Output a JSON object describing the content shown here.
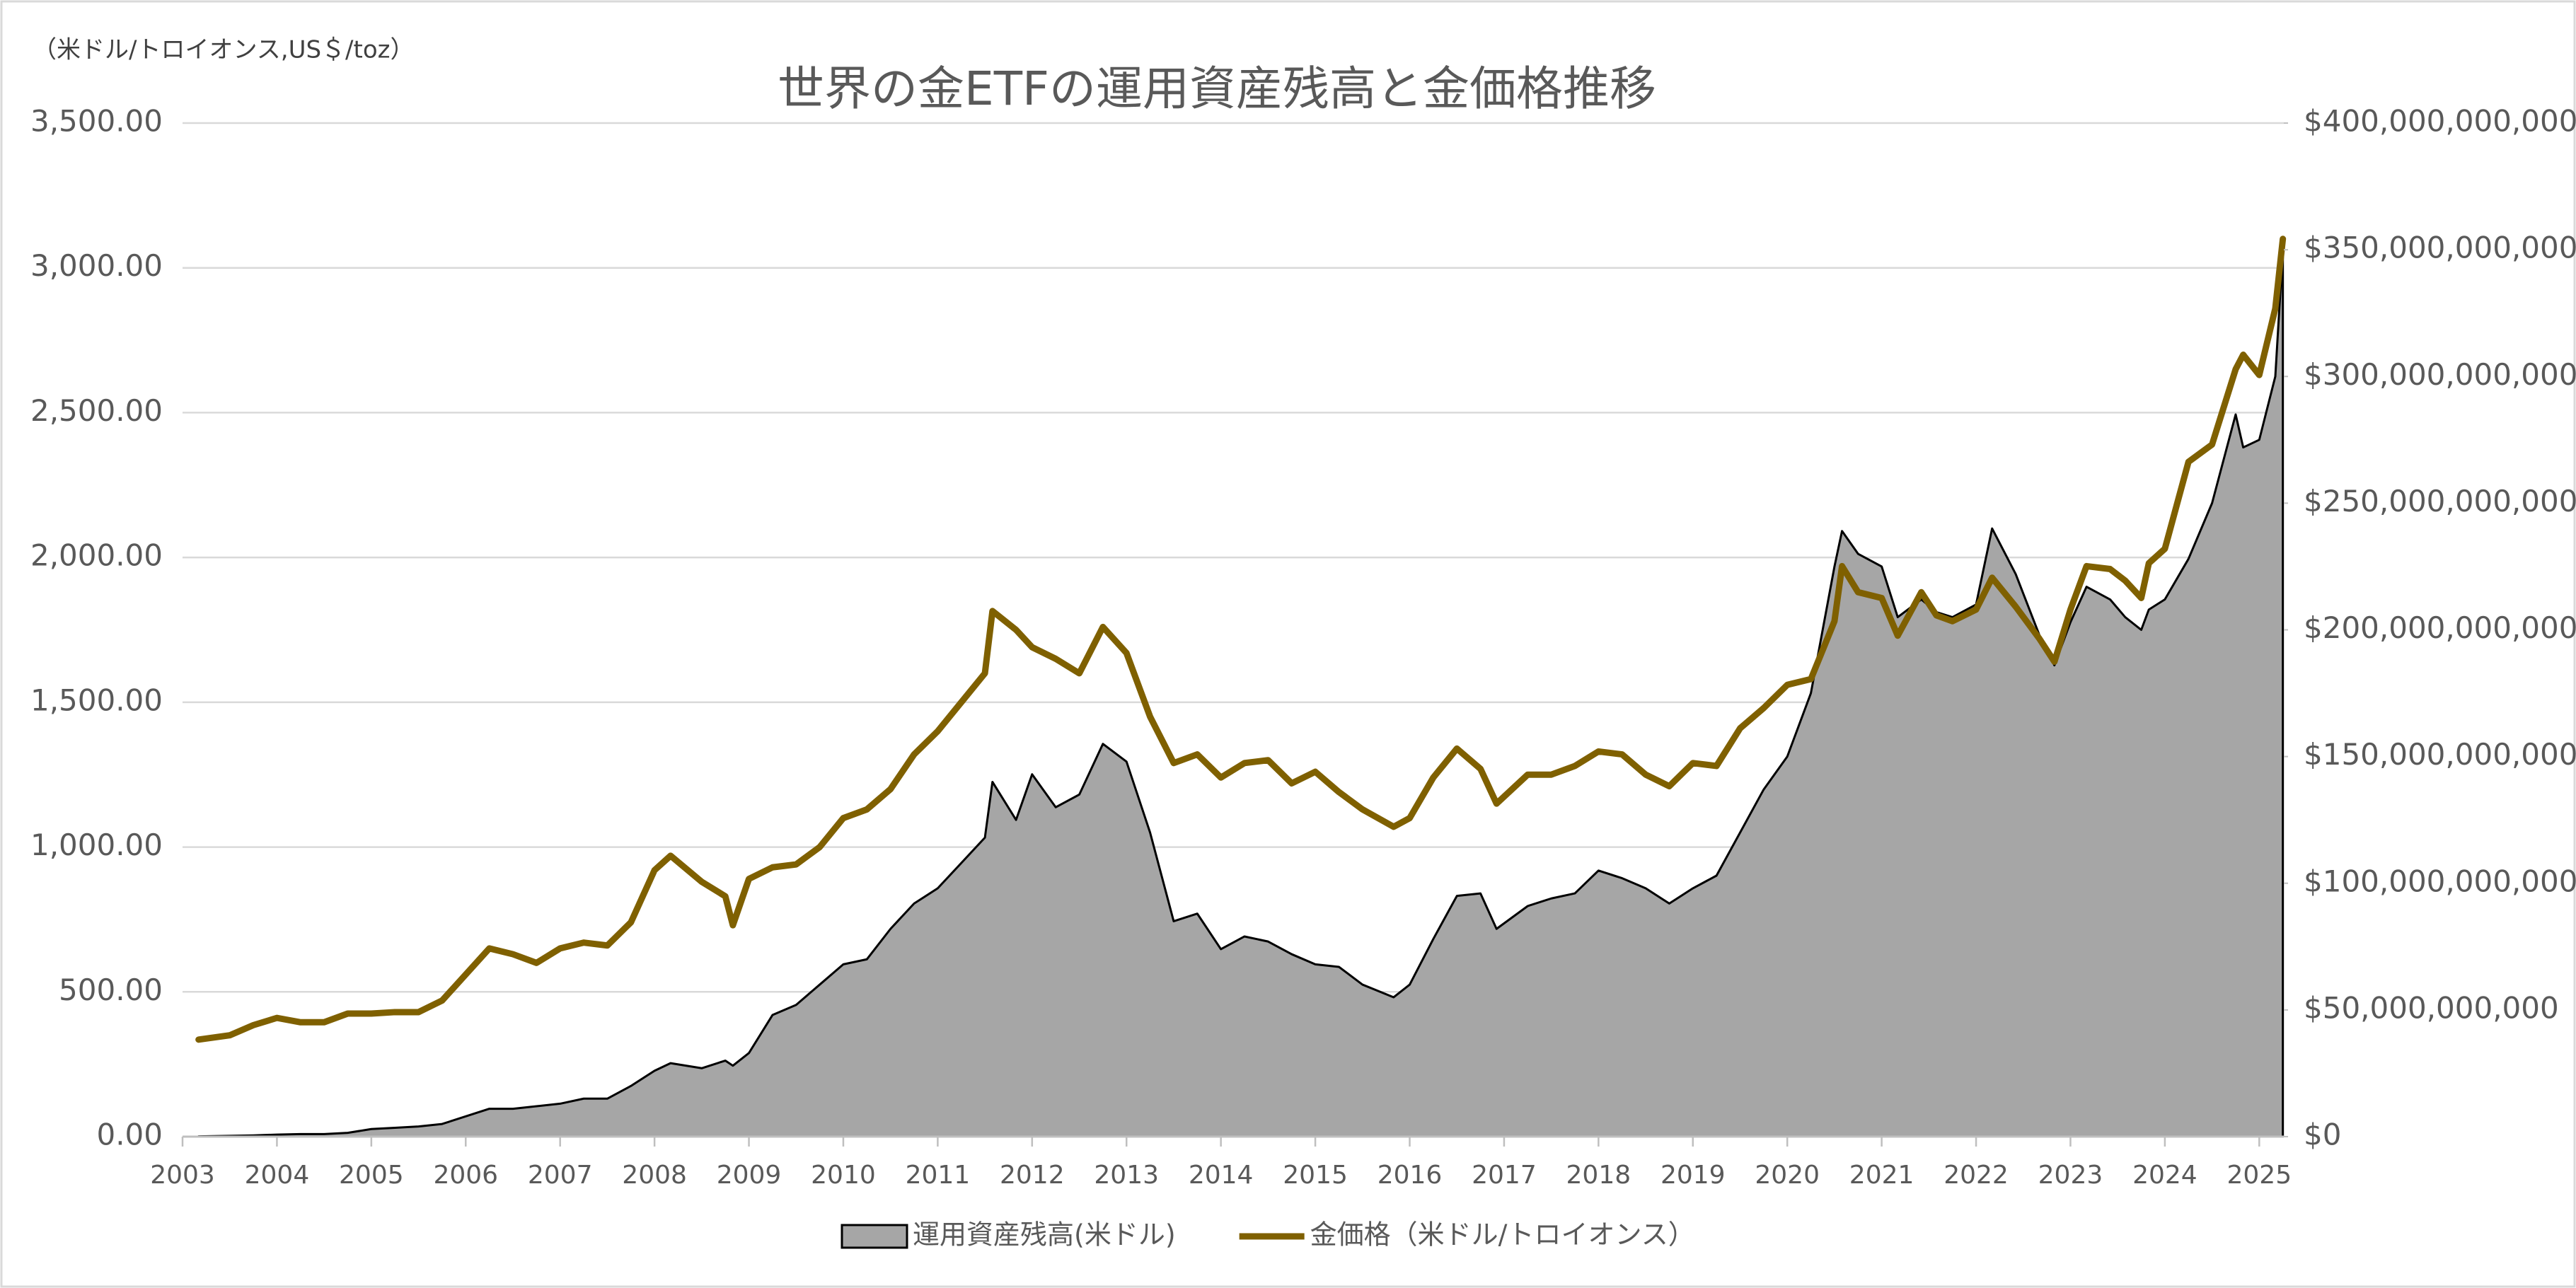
{
  "chart_data": {
    "type": "combo",
    "title": "世界の金ETFの運用資産残高と金価格推移",
    "y_unit_label": "（米ドル/トロイオンス,US＄/toz）",
    "x": [
      2003.17,
      2003.5,
      2003.75,
      2004.0,
      2004.25,
      2004.5,
      2004.75,
      2005.0,
      2005.25,
      2005.5,
      2005.75,
      2006.0,
      2006.25,
      2006.5,
      2006.75,
      2007.0,
      2007.25,
      2007.5,
      2007.75,
      2008.0,
      2008.17,
      2008.5,
      2008.75,
      2008.83,
      2009.0,
      2009.25,
      2009.5,
      2009.75,
      2010.0,
      2010.25,
      2010.5,
      2010.75,
      2011.0,
      2011.25,
      2011.5,
      2011.58,
      2011.83,
      2012.0,
      2012.25,
      2012.5,
      2012.75,
      2013.0,
      2013.25,
      2013.5,
      2013.75,
      2014.0,
      2014.25,
      2014.5,
      2014.75,
      2015.0,
      2015.25,
      2015.5,
      2015.83,
      2016.0,
      2016.25,
      2016.5,
      2016.75,
      2016.92,
      2017.25,
      2017.5,
      2017.75,
      2018.0,
      2018.25,
      2018.5,
      2018.75,
      2019.0,
      2019.25,
      2019.5,
      2019.75,
      2020.0,
      2020.25,
      2020.5,
      2020.58,
      2020.75,
      2021.0,
      2021.17,
      2021.42,
      2021.58,
      2021.75,
      2022.0,
      2022.17,
      2022.42,
      2022.67,
      2022.83,
      2023.0,
      2023.17,
      2023.42,
      2023.58,
      2023.75,
      2023.83,
      2024.0,
      2024.25,
      2024.5,
      2024.75,
      2024.83,
      2025.0,
      2025.17,
      2025.25
    ],
    "series": [
      {
        "name": "運用資産残高(米ドル)",
        "type": "area",
        "axis": "y2",
        "color": "#a6a6a6",
        "edge_color": "#000000",
        "values": [
          100000000.0,
          300000000.0,
          500000000.0,
          800000000.0,
          1000000000.0,
          1000000000.0,
          1500000000.0,
          3000000000.0,
          3500000000.0,
          4000000000.0,
          5000000000.0,
          8000000000.0,
          11000000000.0,
          11000000000.0,
          12000000000.0,
          13000000000.0,
          15000000000.0,
          15000000000.0,
          20000000000.0,
          26000000000.0,
          29000000000.0,
          27000000000.0,
          30000000000.0,
          28000000000.0,
          33000000000.0,
          48000000000.0,
          52000000000.0,
          60000000000.0,
          68000000000.0,
          70000000000.0,
          82000000000.0,
          92000000000.0,
          98000000000.0,
          108000000000.0,
          118000000000.0,
          140000000000.0,
          125000000000.0,
          143000000000.0,
          130000000000.0,
          135000000000.0,
          155000000000.0,
          148000000000.0,
          120000000000.0,
          85000000000.0,
          88000000000.0,
          74000000000.0,
          79000000000.0,
          77000000000.0,
          72000000000.0,
          68000000000.0,
          67000000000.0,
          60000000000.0,
          55000000000.0,
          60000000000.0,
          78000000000.0,
          95000000000.0,
          96000000000.0,
          82000000000.0,
          91000000000.0,
          94000000000.0,
          96000000000.0,
          105000000000.0,
          102000000000.0,
          98000000000.0,
          92000000000.0,
          98000000000.0,
          103000000000.0,
          120000000000.0,
          137000000000.0,
          150000000000.0,
          175000000000.0,
          225000000000.0,
          239000000000.0,
          230000000000.0,
          225000000000.0,
          205000000000.0,
          212000000000.0,
          207000000000.0,
          205000000000.0,
          210000000000.0,
          240000000000.0,
          222000000000.0,
          198000000000.0,
          186000000000.0,
          203000000000.0,
          217000000000.0,
          212000000000.0,
          205000000000.0,
          200000000000.0,
          208000000000.0,
          212000000000.0,
          228000000000.0,
          250000000000.0,
          285000000000.0,
          272000000000.0,
          275000000000.0,
          300000000000.0,
          350000000000.0
        ]
      },
      {
        "name": "金価格（米ドル/トロイオンス）",
        "type": "line",
        "axis": "y",
        "color": "#7f6000",
        "values": [
          335,
          350,
          385,
          410,
          395,
          395,
          425,
          425,
          430,
          430,
          470,
          560,
          650,
          630,
          600,
          650,
          670,
          660,
          740,
          920,
          970,
          880,
          830,
          730,
          890,
          930,
          940,
          1000,
          1100,
          1130,
          1200,
          1320,
          1400,
          1500,
          1600,
          1815,
          1750,
          1690,
          1650,
          1600,
          1760,
          1670,
          1450,
          1290,
          1320,
          1240,
          1290,
          1300,
          1220,
          1260,
          1190,
          1130,
          1070,
          1100,
          1240,
          1340,
          1270,
          1150,
          1250,
          1250,
          1280,
          1330,
          1320,
          1250,
          1210,
          1290,
          1280,
          1410,
          1480,
          1560,
          1580,
          1780,
          1970,
          1880,
          1860,
          1730,
          1880,
          1800,
          1780,
          1820,
          1930,
          1830,
          1720,
          1640,
          1820,
          1970,
          1960,
          1920,
          1860,
          1980,
          2030,
          2330,
          2390,
          2650,
          2700,
          2630,
          2860,
          3100
        ]
      }
    ],
    "xlim": [
      2003,
      2025.26
    ],
    "xticks": [
      2003,
      2004,
      2005,
      2006,
      2007,
      2008,
      2009,
      2010,
      2011,
      2012,
      2013,
      2014,
      2015,
      2016,
      2017,
      2018,
      2019,
      2020,
      2021,
      2022,
      2023,
      2024,
      2025
    ],
    "ylim": [
      0,
      3500
    ],
    "yticks": [
      {
        "value": 0,
        "label": "0.00"
      },
      {
        "value": 500,
        "label": "500.00"
      },
      {
        "value": 1000,
        "label": "1,000.00"
      },
      {
        "value": 1500,
        "label": "1,500.00"
      },
      {
        "value": 2000,
        "label": "2,000.00"
      },
      {
        "value": 2500,
        "label": "2,500.00"
      },
      {
        "value": 3000,
        "label": "3,000.00"
      },
      {
        "value": 3500,
        "label": "3,500.00"
      }
    ],
    "y2lim": [
      0,
      400000000000
    ],
    "y2ticks": [
      {
        "value": 0,
        "label": "$0"
      },
      {
        "value": 50000000000,
        "label": "$50,000,000,000"
      },
      {
        "value": 100000000000,
        "label": "$100,000,000,000"
      },
      {
        "value": 150000000000,
        "label": "$150,000,000,000"
      },
      {
        "value": 200000000000,
        "label": "$200,000,000,000"
      },
      {
        "value": 250000000000,
        "label": "$250,000,000,000"
      },
      {
        "value": 300000000000,
        "label": "$300,000,000,000"
      },
      {
        "value": 350000000000,
        "label": "$350,000,000,000"
      },
      {
        "value": 400000000000,
        "label": "$400,000,000,000"
      }
    ],
    "grid": true,
    "legend": "bottom"
  }
}
